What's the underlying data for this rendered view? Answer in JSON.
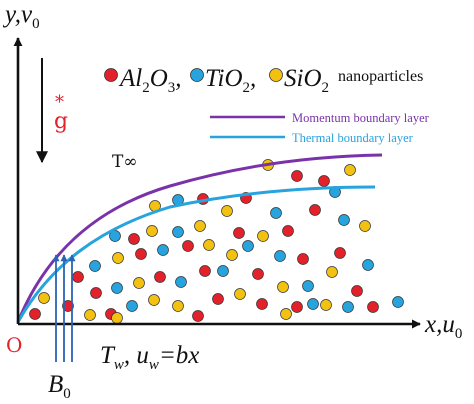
{
  "axes": {
    "y_label": "y,v",
    "y_sub": "0",
    "x_label": "x,u",
    "x_sub": "0",
    "origin": "O"
  },
  "gravity": {
    "star": "*",
    "label": "g"
  },
  "nanoparticles": {
    "items": [
      {
        "name": "Al",
        "sub1": "2",
        "mid": "O",
        "sub2": "3",
        "color": "#e3212b"
      },
      {
        "name": "TiO",
        "sub1": "2",
        "color": "#27a3de"
      },
      {
        "name": "SiO",
        "sub1": "2",
        "color": "#f2c112"
      }
    ],
    "suffix": "nanoparticles"
  },
  "legend": {
    "momentum": {
      "label": "Momentum boundary layer",
      "color": "#7a32a8"
    },
    "thermal": {
      "label": "Thermal boundary layer",
      "color": "#27a3de"
    }
  },
  "free_stream": "T∞",
  "wall_condition": {
    "T": "T",
    "T_sub": "w",
    "u": "u",
    "u_sub": "w",
    "eq": "=bx"
  },
  "magnetic_field": {
    "B": "B",
    "B_sub": "0"
  },
  "colors": {
    "axis": "#111111",
    "red": "#e3212b",
    "blue": "#27a3de",
    "yellow": "#f2c112",
    "gravity_star": "#e3212b",
    "arrows": "#2a63b8"
  }
}
